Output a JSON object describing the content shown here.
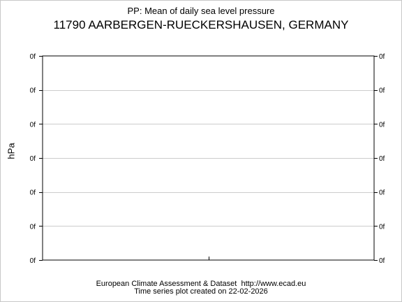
{
  "header": {
    "title": "PP: Mean of daily sea level pressure",
    "subtitle": "11790 AARBERGEN-RUECKERSHAUSEN, GERMANY"
  },
  "footer": {
    "line1": "European Climate Assessment & Dataset  http://www.ecad.eu",
    "line2": "Time series plot created on 22-02-2026"
  },
  "chart_data": {
    "type": "line",
    "title": "PP: Mean of daily sea level pressure",
    "subtitle": "11790 AARBERGEN-RUECKERSHAUSEN, GERMANY",
    "xlabel": "",
    "ylabel": "hPa",
    "y_tick_labels": [
      "0f",
      "0f",
      "0f",
      "0f",
      "0f",
      "0f",
      "0f"
    ],
    "right_y_tick_labels": [
      "0f",
      "0f",
      "0f",
      "0f",
      "0f",
      "0f",
      "0f"
    ],
    "x_tick_count": 1,
    "series": [],
    "grid": true,
    "gridline_color": "#cccccc"
  }
}
